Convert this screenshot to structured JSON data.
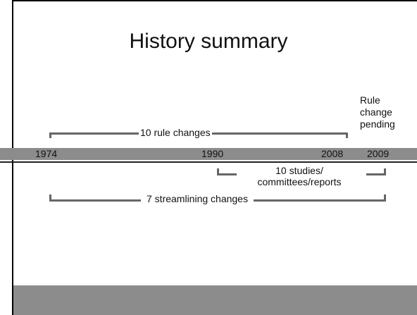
{
  "title": "History summary",
  "timeline": {
    "years": [
      "1974",
      "1990",
      "2008",
      "2009"
    ]
  },
  "annotations": {
    "rule_changes": "10  rule changes",
    "pending": "Rule change pending",
    "studies": "10 studies/ committees/reports",
    "streamlining": "7 streamlining changes"
  }
}
